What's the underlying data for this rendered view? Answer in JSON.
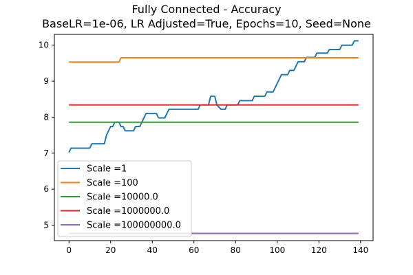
{
  "chart_data": {
    "type": "line",
    "title_lines": [
      "Fully Connected - Accuracy",
      "BaseLR=1e-06, LR Adjusted=True, Epochs=10, Seed=None"
    ],
    "xlabel": "",
    "ylabel": "",
    "xlim": [
      -7,
      146
    ],
    "ylim": [
      4.57,
      10.3
    ],
    "x_ticks": [
      0,
      20,
      40,
      60,
      80,
      100,
      120,
      140
    ],
    "y_ticks": [
      5,
      6,
      7,
      8,
      9,
      10
    ],
    "grid": false,
    "legend_position": "lower-left",
    "series": [
      {
        "name": "Scale =1",
        "color": "#1f77b4",
        "points": [
          [
            0,
            7.02
          ],
          [
            1,
            7.14
          ],
          [
            10,
            7.14
          ],
          [
            11,
            7.26
          ],
          [
            17,
            7.26
          ],
          [
            18,
            7.5
          ],
          [
            19,
            7.62
          ],
          [
            20,
            7.74
          ],
          [
            21,
            7.74
          ],
          [
            22,
            7.86
          ],
          [
            24,
            7.86
          ],
          [
            25,
            7.74
          ],
          [
            26,
            7.74
          ],
          [
            27,
            7.62
          ],
          [
            31,
            7.62
          ],
          [
            32,
            7.74
          ],
          [
            34,
            7.74
          ],
          [
            35,
            7.86
          ],
          [
            36,
            7.98
          ],
          [
            37,
            8.1
          ],
          [
            42,
            8.1
          ],
          [
            43,
            7.98
          ],
          [
            46,
            7.98
          ],
          [
            47,
            8.1
          ],
          [
            48,
            8.22
          ],
          [
            61,
            8.22
          ],
          [
            62,
            8.22
          ],
          [
            63,
            8.34
          ],
          [
            67,
            8.34
          ],
          [
            68,
            8.58
          ],
          [
            70,
            8.58
          ],
          [
            71,
            8.34
          ],
          [
            73,
            8.22
          ],
          [
            75,
            8.22
          ],
          [
            76,
            8.34
          ],
          [
            81,
            8.34
          ],
          [
            82,
            8.46
          ],
          [
            88,
            8.46
          ],
          [
            89,
            8.58
          ],
          [
            94,
            8.58
          ],
          [
            95,
            8.7
          ],
          [
            98,
            8.7
          ],
          [
            99,
            8.82
          ],
          [
            100,
            8.94
          ],
          [
            101,
            9.06
          ],
          [
            102,
            9.18
          ],
          [
            105,
            9.18
          ],
          [
            106,
            9.3
          ],
          [
            108,
            9.3
          ],
          [
            109,
            9.42
          ],
          [
            110,
            9.54
          ],
          [
            113,
            9.54
          ],
          [
            114,
            9.66
          ],
          [
            118,
            9.66
          ],
          [
            119,
            9.78
          ],
          [
            121,
            9.78
          ],
          [
            124,
            9.78
          ],
          [
            125,
            9.88
          ],
          [
            130,
            9.88
          ],
          [
            131,
            10.0
          ],
          [
            136,
            10.0
          ],
          [
            137,
            10.12
          ],
          [
            139,
            10.12
          ]
        ]
      },
      {
        "name": "Scale =100",
        "color": "#ff7f0e",
        "points": [
          [
            0,
            9.53
          ],
          [
            24,
            9.53
          ],
          [
            25,
            9.65
          ],
          [
            139,
            9.65
          ]
        ]
      },
      {
        "name": "Scale =10000.0",
        "color": "#2ca02c",
        "points": [
          [
            0,
            7.86
          ],
          [
            139,
            7.86
          ]
        ]
      },
      {
        "name": "Scale =1000000.0",
        "color": "#d62728",
        "points": [
          [
            0,
            8.34
          ],
          [
            139,
            8.34
          ]
        ]
      },
      {
        "name": "Scale =100000000.0",
        "color": "#9467bd",
        "points": [
          [
            0,
            4.77
          ],
          [
            139,
            4.77
          ]
        ]
      }
    ]
  }
}
